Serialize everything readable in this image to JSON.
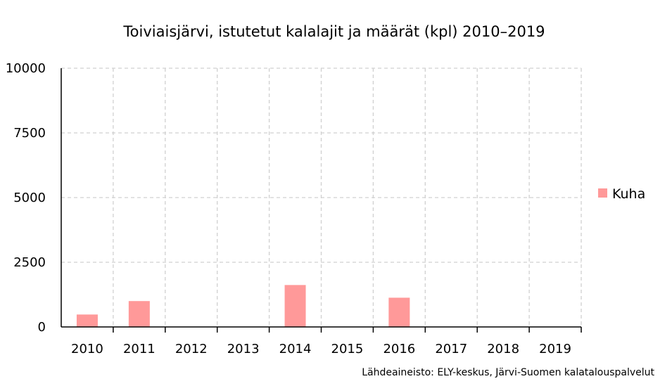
{
  "chart_data": {
    "type": "bar",
    "title": "Toiviaisjärvi, istutetut kalalajit ja määrät (kpl) 2010–2019",
    "xlabel": "",
    "ylabel": "",
    "categories": [
      "2010",
      "2011",
      "2012",
      "2013",
      "2014",
      "2015",
      "2016",
      "2017",
      "2018",
      "2019"
    ],
    "series": [
      {
        "name": "Kuha",
        "color": "#ff9999",
        "values": [
          480,
          1000,
          0,
          0,
          1620,
          0,
          1130,
          0,
          0,
          0
        ]
      }
    ],
    "ylim": [
      0,
      10000
    ],
    "yticks": [
      "0",
      "2500",
      "5000",
      "7500",
      "10000"
    ],
    "grid": true,
    "legend_position": "right",
    "source": "Lähdeaineisto: ELY-keskus, Järvi-Suomen kalatalouspalvelut"
  }
}
